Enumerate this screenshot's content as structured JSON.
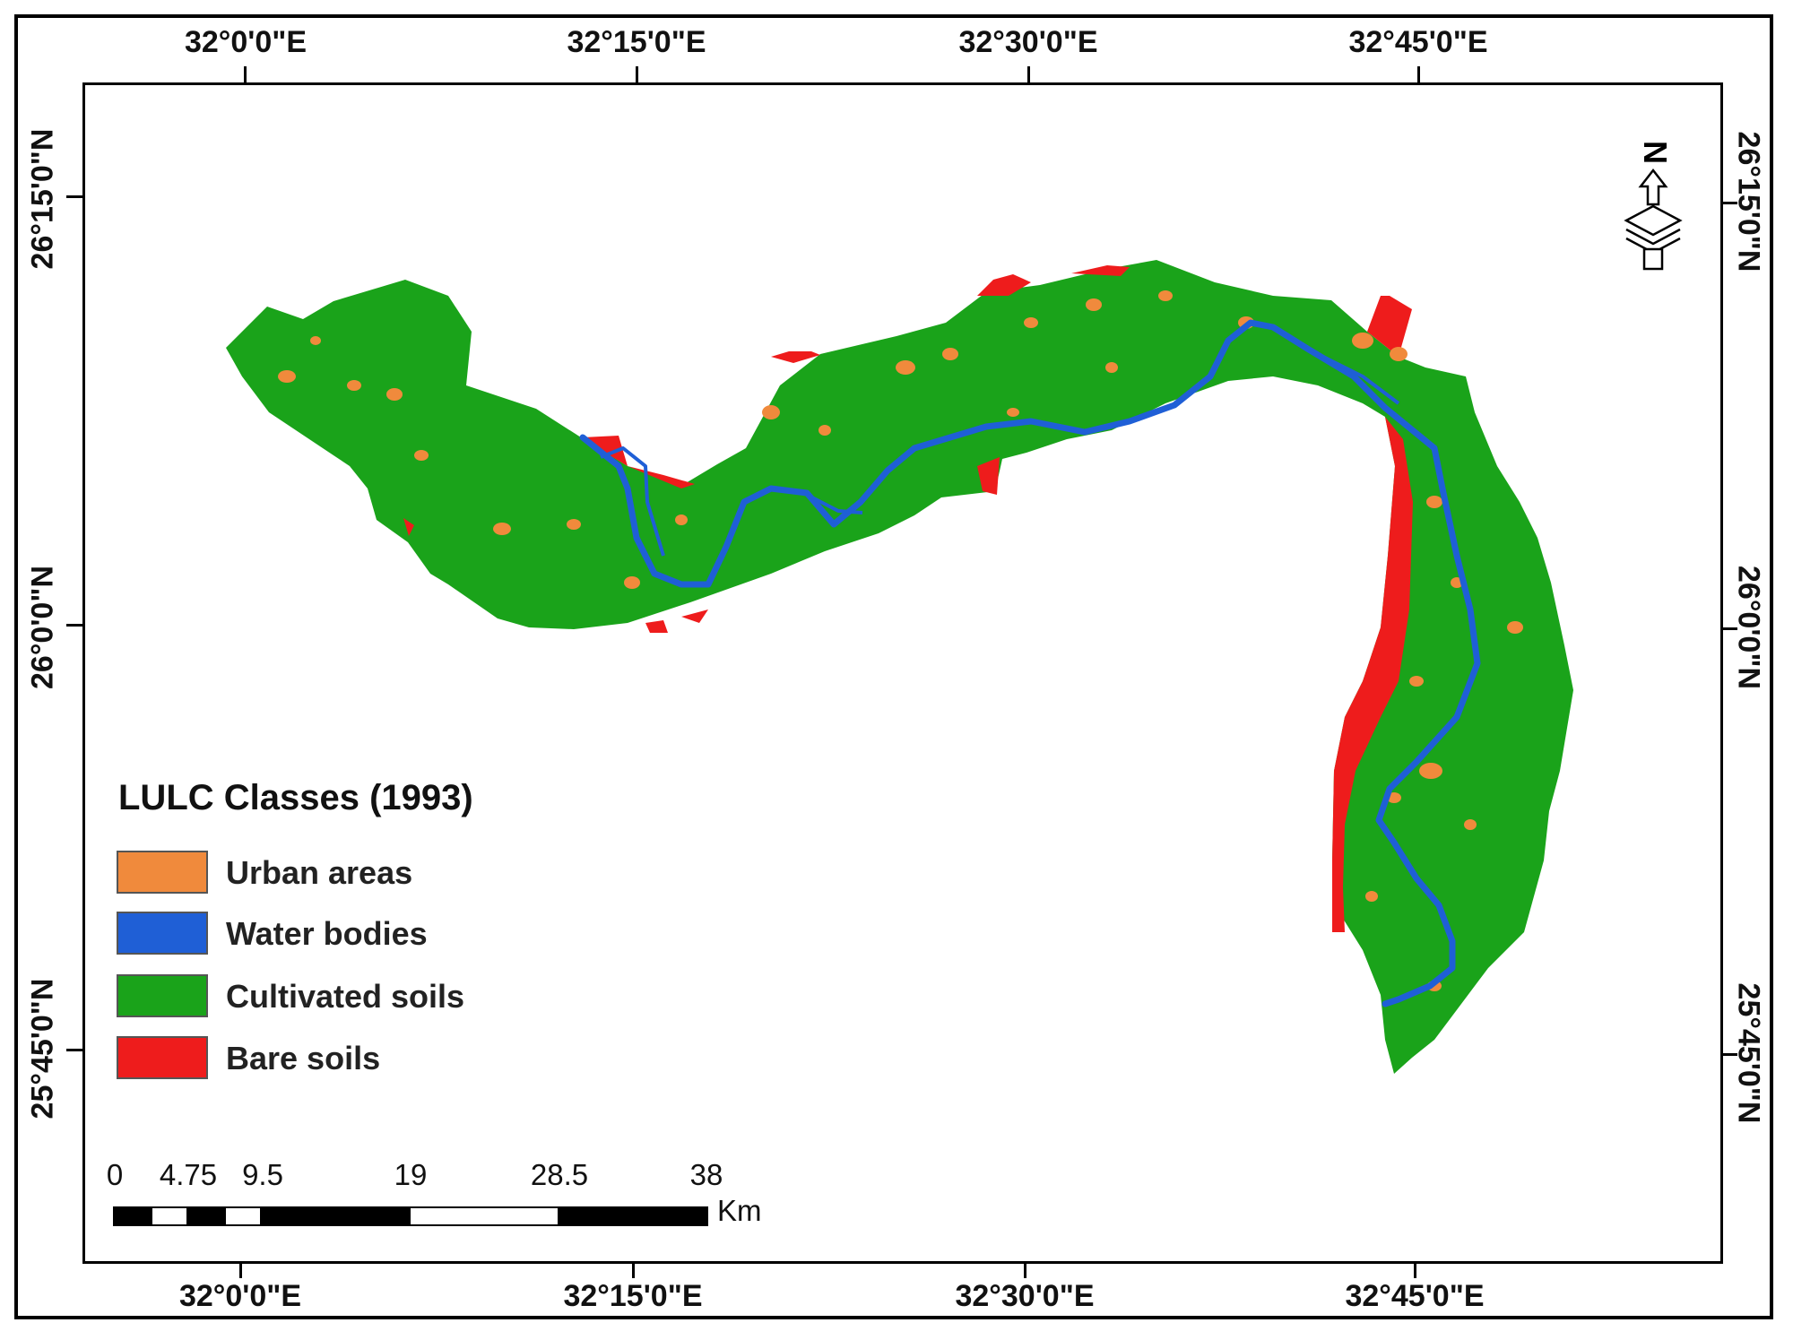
{
  "map": {
    "legend_title": "LULC Classes (1993)",
    "legend": [
      {
        "label": "Urban areas",
        "color": "#f08a3c"
      },
      {
        "label": "Water bodies",
        "color": "#1f5fd6"
      },
      {
        "label": "Cultivated soils",
        "color": "#1aa31a"
      },
      {
        "label": "Bare soils",
        "color": "#ee1c1c"
      }
    ],
    "lon_labels_top": [
      "32°0'0\"E",
      "32°15'0\"E",
      "32°30'0\"E",
      "32°45'0\"E"
    ],
    "lon_labels_bottom": [
      "32°0'0\"E",
      "32°15'0\"E",
      "32°30'0\"E",
      "32°45'0\"E"
    ],
    "lat_labels_left": [
      "26°15'0\"N",
      "26°0'0\"N",
      "25°45'0\"N"
    ],
    "lat_labels_right": [
      "26°15'0\"N",
      "26°0'0\"N",
      "25°45'0\"N"
    ],
    "scale_bar": {
      "labels": [
        "0",
        "4.75",
        "9.5",
        "19",
        "28.5",
        "38"
      ],
      "unit": "Km"
    },
    "north_arrow_label": "N"
  }
}
